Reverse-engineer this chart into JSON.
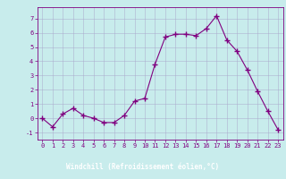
{
  "x": [
    0,
    1,
    2,
    3,
    4,
    5,
    6,
    7,
    8,
    9,
    10,
    11,
    12,
    13,
    14,
    15,
    16,
    17,
    18,
    19,
    20,
    21,
    22,
    23
  ],
  "y": [
    0,
    -0.6,
    0.3,
    0.7,
    0.2,
    0,
    -0.3,
    -0.3,
    0.2,
    1.2,
    1.4,
    3.8,
    5.7,
    5.9,
    5.9,
    5.8,
    6.3,
    7.2,
    5.5,
    4.7,
    3.4,
    1.9,
    0.5,
    -0.8
  ],
  "line_color": "#800080",
  "marker": "+",
  "marker_size": 4,
  "xlim": [
    -0.5,
    23.5
  ],
  "ylim": [
    -1.5,
    7.8
  ],
  "yticks": [
    -1,
    0,
    1,
    2,
    3,
    4,
    5,
    6,
    7
  ],
  "xticks": [
    0,
    1,
    2,
    3,
    4,
    5,
    6,
    7,
    8,
    9,
    10,
    11,
    12,
    13,
    14,
    15,
    16,
    17,
    18,
    19,
    20,
    21,
    22,
    23
  ],
  "xlabel": "Windchill (Refroidissement éolien,°C)",
  "bg_color": "#c8ecec",
  "grid_color": "#aaaacc",
  "text_color": "#800080",
  "bottom_bar_color": "#800080",
  "font_family": "monospace",
  "tick_fontsize": 5.0,
  "label_fontsize": 5.5,
  "bottom_bar_height": 0.13
}
